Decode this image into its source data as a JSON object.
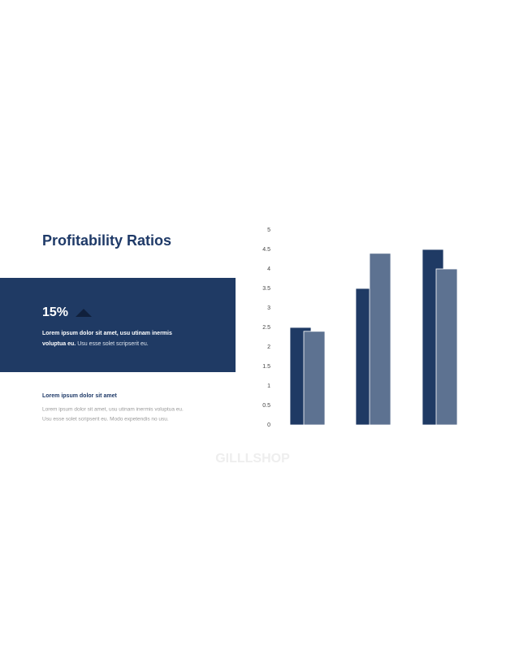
{
  "title": "Profitability Ratios",
  "highlight": {
    "value": "15%",
    "bold_lines": [
      "Lorem ipsum dolor sit amet, usu utinam inermis",
      "voluptua eu."
    ],
    "text": "Usu esse solet scripserit eu."
  },
  "note": {
    "heading": "Lorem ipsum dolor sit amet",
    "lines": [
      "Lorem ipsum dolor sit amet, usu utinam inermis voluptua eu.",
      "Usu esse solet scripserit eu. Modo expetendis no usu."
    ]
  },
  "watermark": "GILLLSHOP",
  "chart_data": {
    "type": "bar",
    "categories": [
      null,
      null,
      null
    ],
    "series": [
      {
        "color": "#1f3a64",
        "values": [
          2.5,
          3.5,
          4.5
        ]
      },
      {
        "color": "#5d7291",
        "values": [
          2.4,
          4.4,
          4.0
        ]
      }
    ],
    "ylim": [
      0,
      5
    ],
    "yticks": [
      0,
      0.5,
      1,
      1.5,
      2,
      2.5,
      3,
      3.5,
      4,
      4.5,
      5
    ]
  }
}
